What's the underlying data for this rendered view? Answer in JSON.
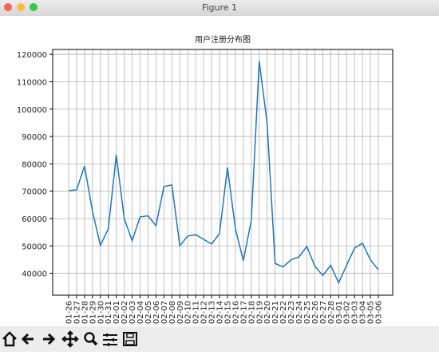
{
  "window_title": "Figure 1",
  "chart_data": {
    "type": "line",
    "title": "用户注册分布图",
    "categories": [
      "01-26",
      "01-27",
      "01-28",
      "01-29",
      "01-30",
      "01-31",
      "02-01",
      "02-02",
      "02-03",
      "02-04",
      "02-05",
      "02-06",
      "02-07",
      "02-08",
      "02-09",
      "02-10",
      "02-11",
      "02-12",
      "02-13",
      "02-14",
      "02-15",
      "02-16",
      "02-17",
      "02-18",
      "02-19",
      "02-20",
      "02-21",
      "02-22",
      "02-23",
      "02-24",
      "02-25",
      "02-26",
      "02-27",
      "02-28",
      "03-01",
      "03-02",
      "03-03",
      "03-04",
      "03-05",
      "03-06"
    ],
    "values": [
      70200,
      70500,
      79200,
      62700,
      50200,
      56300,
      83300,
      60000,
      51900,
      60600,
      61000,
      57400,
      71700,
      72300,
      50100,
      53600,
      54100,
      52400,
      50700,
      54500,
      78700,
      56300,
      44600,
      59300,
      117500,
      94700,
      43600,
      42300,
      44900,
      46000,
      49800,
      42600,
      39200,
      42900,
      36500,
      42900,
      49200,
      51000,
      44900,
      41300
    ],
    "color": "#1f77b4",
    "ylim": [
      32000,
      121800
    ],
    "yticks": [
      40000,
      50000,
      60000,
      70000,
      80000,
      90000,
      100000,
      110000,
      120000
    ],
    "grid": true
  }
}
